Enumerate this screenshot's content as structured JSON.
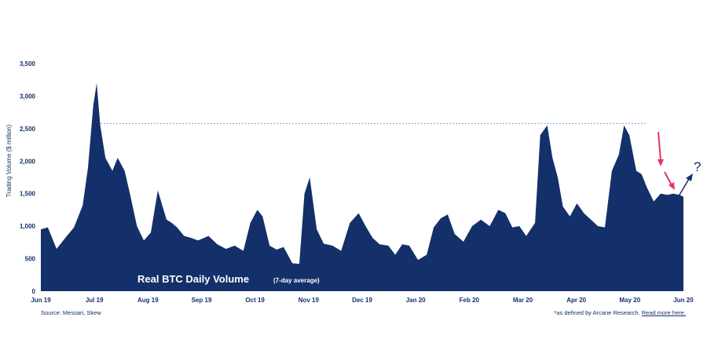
{
  "chart_data": {
    "type": "area",
    "title": "Real BTC Daily Volume",
    "subtitle": "(7-day average)",
    "ylabel": "Trading Volume ($ million)",
    "xlabel": "",
    "ylim": [
      0,
      3500
    ],
    "y_ticks": [
      "0",
      "500",
      "1,000",
      "1,500",
      "2,000",
      "2,500",
      "3,000",
      "3,500"
    ],
    "x_ticks": [
      "Jun 19",
      "Jul 19",
      "Aug 19",
      "Sep 19",
      "Oct 19",
      "Nov 19",
      "Dec 19",
      "Jan 20",
      "Feb 20",
      "Mar 20",
      "Apr 20",
      "May 20",
      "Jun 20"
    ],
    "grid": false,
    "series": [
      {
        "x": [
          "2019-06-01",
          "2019-06-05",
          "2019-06-10",
          "2019-06-15",
          "2019-06-20",
          "2019-06-25",
          "2019-06-28",
          "2019-07-01",
          "2019-07-03",
          "2019-07-05",
          "2019-07-08",
          "2019-07-12",
          "2019-07-15",
          "2019-07-19",
          "2019-07-22",
          "2019-07-26",
          "2019-07-30",
          "2019-08-03",
          "2019-08-07",
          "2019-08-12",
          "2019-08-15",
          "2019-08-18",
          "2019-08-22",
          "2019-08-26",
          "2019-08-30",
          "2019-09-05",
          "2019-09-10",
          "2019-09-15",
          "2019-09-20",
          "2019-09-25",
          "2019-09-29",
          "2019-10-03",
          "2019-10-06",
          "2019-10-10",
          "2019-10-14",
          "2019-10-18",
          "2019-10-23",
          "2019-10-27",
          "2019-10-30",
          "2019-11-02",
          "2019-11-06",
          "2019-11-10",
          "2019-11-15",
          "2019-11-20",
          "2019-11-25",
          "2019-11-30",
          "2019-12-04",
          "2019-12-08",
          "2019-12-12",
          "2019-12-17",
          "2019-12-21",
          "2019-12-25",
          "2019-12-29",
          "2020-01-03",
          "2020-01-08",
          "2020-01-12",
          "2020-01-16",
          "2020-01-20",
          "2020-01-24",
          "2020-01-29",
          "2020-02-03",
          "2020-02-08",
          "2020-02-13",
          "2020-02-18",
          "2020-02-22",
          "2020-02-26",
          "2020-03-01",
          "2020-03-05",
          "2020-03-10",
          "2020-03-13",
          "2020-03-17",
          "2020-03-20",
          "2020-03-23",
          "2020-03-26",
          "2020-03-30",
          "2020-04-03",
          "2020-04-07",
          "2020-04-11",
          "2020-04-15",
          "2020-04-19",
          "2020-04-23",
          "2020-04-27",
          "2020-04-30",
          "2020-05-03",
          "2020-05-07",
          "2020-05-10",
          "2020-05-13",
          "2020-05-17",
          "2020-05-21",
          "2020-05-25",
          "2020-05-28",
          "2020-06-01",
          "2020-06-03"
        ],
        "values": [
          950,
          980,
          650,
          820,
          980,
          1320,
          1900,
          2850,
          3200,
          2550,
          2050,
          1850,
          2050,
          1850,
          1500,
          1000,
          780,
          900,
          1550,
          1100,
          1050,
          980,
          850,
          820,
          780,
          850,
          720,
          650,
          700,
          620,
          1050,
          1250,
          1150,
          700,
          640,
          680,
          430,
          420,
          1500,
          1750,
          950,
          730,
          700,
          620,
          1050,
          1200,
          1000,
          820,
          720,
          700,
          560,
          720,
          700,
          480,
          560,
          980,
          1120,
          1180,
          880,
          760,
          1000,
          1100,
          1000,
          1250,
          1200,
          980,
          1000,
          850,
          1050,
          2400,
          2550,
          2050,
          1750,
          1300,
          1150,
          1350,
          1200,
          1100,
          1000,
          980,
          1850,
          2100,
          2550,
          2400,
          1850,
          1800,
          1600,
          1380,
          1500,
          1480,
          1500,
          1480,
          1450
        ]
      }
    ],
    "reference_line_value": 2580,
    "annotation": "?"
  },
  "footer": {
    "source": "Source: Messari, Skew",
    "note_prefix": "*as defined by Arcane Research.",
    "note_link": "Read more here."
  },
  "colors": {
    "area": "#14306a",
    "reference_line": "#3f8fd0",
    "down_arrow": "#e8365d",
    "up_arrow": "#14306a",
    "text": "#14306a"
  }
}
